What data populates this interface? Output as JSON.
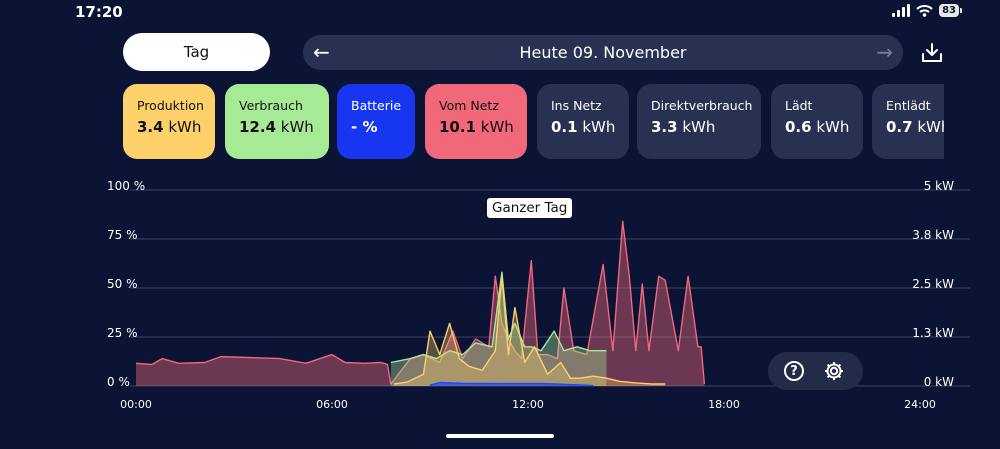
{
  "status": {
    "time": "17:20",
    "battery": "83"
  },
  "period_button": "Tag",
  "date_label": "Heute 09. November",
  "cards": [
    {
      "label": "Produktion",
      "value": "3.4",
      "unit": " kWh",
      "color": "#fdd06a"
    },
    {
      "label": "Verbrauch",
      "value": "12.4",
      "unit": " kWh",
      "color": "#a7ea96"
    },
    {
      "label": "Batterie",
      "value": "- %",
      "unit": "",
      "color": "#1736f0"
    },
    {
      "label": "Vom Netz",
      "value": "10.1",
      "unit": " kWh",
      "color": "#f0687a"
    },
    {
      "label": "Ins Netz",
      "value": "0.1",
      "unit": " kWh",
      "color": "#283152"
    },
    {
      "label": "Direktverbrauch",
      "value": "3.3",
      "unit": " kWh",
      "color": "#283152"
    },
    {
      "label": "Lädt",
      "value": "0.6",
      "unit": " kWh",
      "color": "#283152"
    },
    {
      "label": "Entlädt",
      "value": "0.7",
      "unit": " kWh",
      "color": "#283152"
    }
  ],
  "tooltip": "Ganzer Tag",
  "chart_data": {
    "type": "area",
    "x_unit": "hours",
    "xlim": [
      0,
      24
    ],
    "x_ticks": [
      "00:00",
      "06:00",
      "12:00",
      "18:00",
      "24:00"
    ],
    "y_left_ticks": [
      "0 %",
      "25 %",
      "50 %",
      "75 %",
      "100 %"
    ],
    "y_right_ticks": [
      "0 kW",
      "1.3 kW",
      "2.5 kW",
      "3.8 kW",
      "5 kW"
    ],
    "y_left_range": [
      0,
      100
    ],
    "y_right_range": [
      0,
      5
    ],
    "grid": true,
    "series": [
      {
        "color": "#f0687a",
        "x": [
          0,
          0.5,
          0.8,
          1.3,
          2.1,
          2.6,
          4.4,
          5.2,
          6.0,
          6.4,
          7.0,
          7.5,
          7.7,
          7.8,
          8.4,
          8.8,
          9.3,
          9.7,
          10.0,
          10.4,
          10.8,
          11.0,
          11.2,
          11.4,
          11.6,
          11.8,
          12.1,
          12.3,
          12.6,
          12.9,
          13.1,
          13.4,
          13.8,
          14.3,
          14.6,
          14.9,
          15.1,
          15.3,
          15.5,
          15.7,
          16.0,
          16.2,
          16.6,
          16.9,
          17.2,
          17.3,
          17.4
        ],
        "y": [
          0.58,
          0.55,
          0.7,
          0.58,
          0.6,
          0.75,
          0.7,
          0.58,
          0.8,
          0.6,
          0.58,
          0.6,
          0.55,
          0.05,
          0.7,
          0.8,
          0.6,
          1.4,
          0.7,
          1.2,
          1.0,
          2.8,
          1.6,
          1.2,
          0.9,
          0.7,
          3.2,
          0.8,
          0.8,
          0.7,
          2.5,
          0.9,
          0.8,
          3.1,
          0.9,
          4.2,
          2.8,
          0.9,
          2.6,
          0.9,
          2.8,
          2.7,
          0.9,
          2.8,
          1.0,
          1.0,
          0.05
        ]
      },
      {
        "color": "#a7ea96",
        "x": [
          7.8,
          8.4,
          8.8,
          9.2,
          9.6,
          10.0,
          10.4,
          10.9,
          11.2,
          11.4,
          11.6,
          11.9,
          12.1,
          12.4,
          12.8,
          13.1,
          13.5,
          13.9,
          14.2,
          14.4
        ],
        "y": [
          0.6,
          0.7,
          0.8,
          0.7,
          0.9,
          0.8,
          1.1,
          1.0,
          2.9,
          1.2,
          1.6,
          1.0,
          1.0,
          0.9,
          1.4,
          0.9,
          1.0,
          0.9,
          0.9,
          0.9
        ]
      },
      {
        "color": "#fdd06a",
        "x": [
          7.9,
          8.3,
          8.8,
          9.0,
          9.3,
          9.6,
          9.9,
          10.2,
          10.6,
          11.0,
          11.2,
          11.4,
          11.6,
          11.9,
          12.2,
          12.6,
          13.0,
          13.3,
          13.6,
          14.0,
          14.4,
          14.8,
          15.3,
          15.8,
          16.2
        ],
        "y": [
          0.05,
          0.1,
          0.3,
          1.4,
          0.8,
          1.6,
          0.7,
          0.5,
          0.4,
          0.9,
          2.8,
          0.8,
          2.0,
          0.6,
          1.0,
          0.3,
          0.6,
          0.2,
          0.2,
          0.25,
          0.2,
          0.12,
          0.08,
          0.05,
          0.05
        ]
      },
      {
        "color": "#1d46ff",
        "x": [
          9.0,
          9.3,
          10.0,
          11.5,
          12.5,
          13.5,
          14.0
        ],
        "y": [
          0.02,
          0.09,
          0.07,
          0.06,
          0.06,
          0.03,
          0.01
        ]
      }
    ]
  }
}
